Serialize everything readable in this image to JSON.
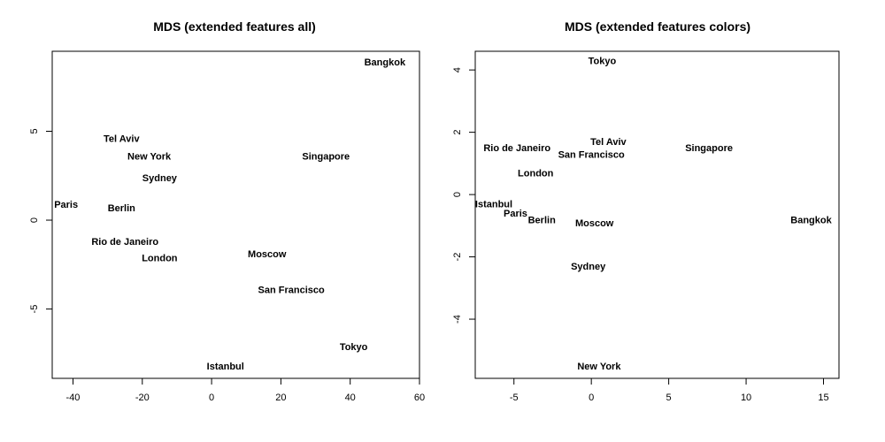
{
  "chart_data": [
    {
      "type": "scatter",
      "title": "MDS (extended features all)",
      "xlabel": "",
      "ylabel": "",
      "xlim": [
        -46,
        60
      ],
      "ylim": [
        -8.9,
        9.5
      ],
      "xticks": [
        "-40",
        "-20",
        "0",
        "20",
        "40",
        "60"
      ],
      "yticks": [
        "-5",
        "0",
        "5"
      ],
      "grid": false,
      "points": [
        {
          "label": "Bangkok",
          "x": 50,
          "y": 8.9
        },
        {
          "label": "Tel Aviv",
          "x": -26,
          "y": 4.6
        },
        {
          "label": "New York",
          "x": -18,
          "y": 3.6
        },
        {
          "label": "Singapore",
          "x": 33,
          "y": 3.6
        },
        {
          "label": "Sydney",
          "x": -15,
          "y": 2.4
        },
        {
          "label": "Paris",
          "x": -42,
          "y": 0.9
        },
        {
          "label": "Berlin",
          "x": -26,
          "y": 0.7
        },
        {
          "label": "Rio de Janeiro",
          "x": -25,
          "y": -1.2
        },
        {
          "label": "London",
          "x": -15,
          "y": -2.1
        },
        {
          "label": "Moscow",
          "x": 16,
          "y": -1.9
        },
        {
          "label": "San Francisco",
          "x": 23,
          "y": -3.9
        },
        {
          "label": "Tokyo",
          "x": 41,
          "y": -7.1
        },
        {
          "label": "Istanbul",
          "x": 4,
          "y": -8.2
        }
      ]
    },
    {
      "type": "scatter",
      "title": "MDS (extended features colors)",
      "xlabel": "",
      "ylabel": "",
      "xlim": [
        -7.5,
        16
      ],
      "ylim": [
        -5.9,
        4.6
      ],
      "xticks": [
        "-5",
        "0",
        "5",
        "10",
        "15"
      ],
      "yticks": [
        "-4",
        "-2",
        "0",
        "2",
        "4"
      ],
      "grid": false,
      "points": [
        {
          "label": "Tokyo",
          "x": 0.7,
          "y": 4.3
        },
        {
          "label": "Tel Aviv",
          "x": 1.1,
          "y": 1.7
        },
        {
          "label": "Singapore",
          "x": 7.6,
          "y": 1.5
        },
        {
          "label": "Rio de Janeiro",
          "x": -4.8,
          "y": 1.5
        },
        {
          "label": "San Francisco",
          "x": 0.0,
          "y": 1.3
        },
        {
          "label": "London",
          "x": -3.6,
          "y": 0.7
        },
        {
          "label": "Istanbul",
          "x": -6.3,
          "y": -0.3
        },
        {
          "label": "Paris",
          "x": -4.9,
          "y": -0.6
        },
        {
          "label": "Berlin",
          "x": -3.2,
          "y": -0.8
        },
        {
          "label": "Moscow",
          "x": 0.2,
          "y": -0.9
        },
        {
          "label": "Bangkok",
          "x": 14.2,
          "y": -0.8
        },
        {
          "label": "Sydney",
          "x": -0.2,
          "y": -2.3
        },
        {
          "label": "New York",
          "x": 0.5,
          "y": -5.5
        }
      ]
    }
  ]
}
